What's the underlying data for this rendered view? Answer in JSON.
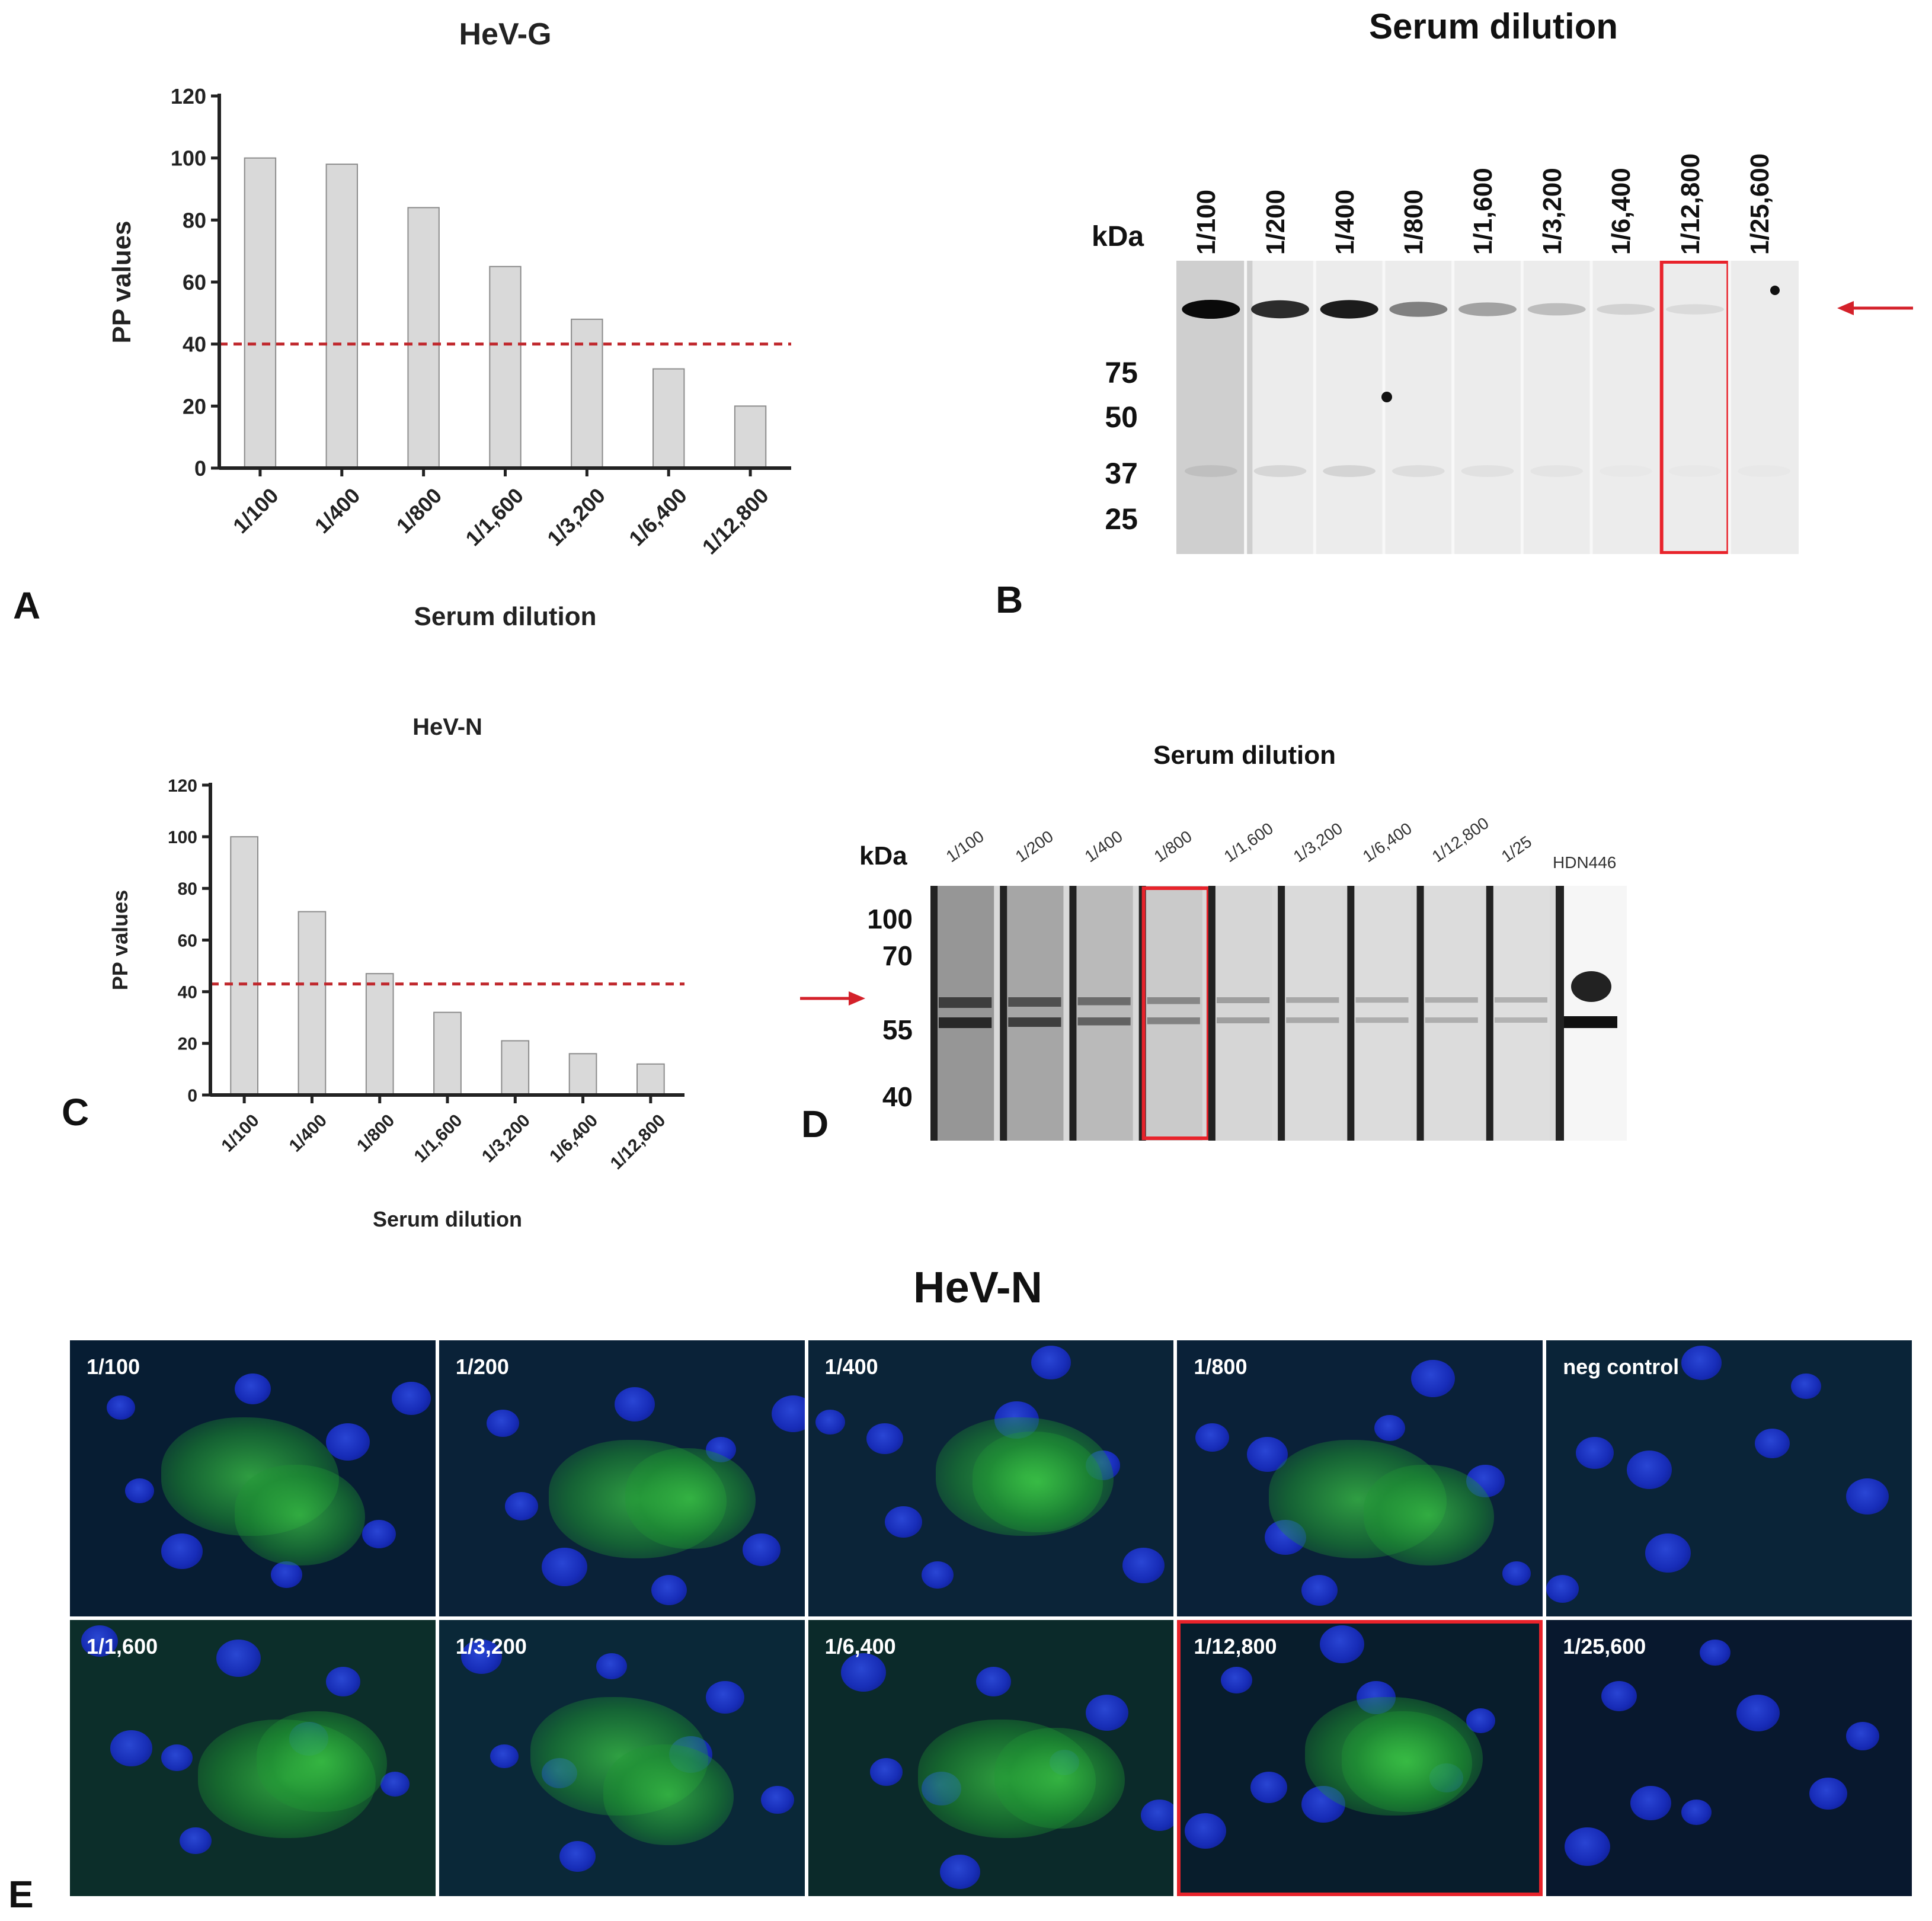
{
  "panels": {
    "a": {
      "letter": "A"
    },
    "b": {
      "letter": "B"
    },
    "c": {
      "letter": "C"
    },
    "d": {
      "letter": "D"
    },
    "e": {
      "letter": "E"
    }
  },
  "chart_data": [
    {
      "type": "bar",
      "panel": "A",
      "title": "HeV-G",
      "xlabel": "Serum dilution",
      "ylabel": "PP values",
      "categories": [
        "1/100",
        "1/400",
        "1/800",
        "1/1,600",
        "1/3,200",
        "1/6,400",
        "1/12,800"
      ],
      "values": [
        100,
        98,
        84,
        65,
        48,
        32,
        20
      ],
      "ylim": [
        0,
        120
      ],
      "yticks": [
        0,
        20,
        40,
        60,
        80,
        100,
        120
      ],
      "threshold": 40,
      "bar_color": "#d9d9d9",
      "threshold_color": "#c0282d"
    },
    {
      "type": "bar",
      "panel": "C",
      "title": "HeV-N",
      "xlabel": "Serum dilution",
      "ylabel": "PP values",
      "categories": [
        "1/100",
        "1/400",
        "1/800",
        "1/1,600",
        "1/3,200",
        "1/6,400",
        "1/12,800"
      ],
      "values": [
        100,
        71,
        47,
        32,
        21,
        16,
        12
      ],
      "ylim": [
        0,
        120
      ],
      "yticks": [
        0,
        20,
        40,
        60,
        80,
        100,
        120
      ],
      "threshold": 43,
      "bar_color": "#d9d9d9",
      "threshold_color": "#c0282d"
    }
  ],
  "blot_b": {
    "title": "Serum dilution",
    "kda": "kDa",
    "lanes": [
      "1/100",
      "1/200",
      "1/400",
      "1/800",
      "1/1,600",
      "1/3,200",
      "1/6,400",
      "1/12,800",
      "1/25,600"
    ],
    "markers": [
      "75",
      "50",
      "37",
      "25"
    ],
    "band_intensity": [
      1.0,
      0.9,
      0.95,
      0.6,
      0.45,
      0.3,
      0.15,
      0.08,
      0.0
    ],
    "highlight_lane": "1/12,800"
  },
  "blot_d": {
    "title": "Serum dilution",
    "kda": "kDa",
    "lanes": [
      "1/100",
      "1/200",
      "1/400",
      "1/800",
      "1/1,600",
      "1/3,200",
      "1/6,400",
      "1/12,800",
      "1/25"
    ],
    "extra_lane": "HDN446",
    "markers": [
      "100",
      "70",
      "55",
      "40"
    ],
    "band_intensity": [
      1.0,
      0.8,
      0.55,
      0.35,
      0.2,
      0.15,
      0.12,
      0.12,
      0.1
    ],
    "highlight_lane": "1/800"
  },
  "if_panel": {
    "title": "HeV-N",
    "cells": [
      {
        "label": "1/100"
      },
      {
        "label": "1/200"
      },
      {
        "label": "1/400"
      },
      {
        "label": "1/800"
      },
      {
        "label": "neg control"
      },
      {
        "label": "1/1,600"
      },
      {
        "label": "1/3,200"
      },
      {
        "label": "1/6,400"
      },
      {
        "label": "1/12,800"
      },
      {
        "label": "1/25,600"
      }
    ],
    "highlight_label": "1/12,800",
    "colors": {
      "nuclei": "#1a2fd0",
      "stain": "#3cc846",
      "background": "#071a2c",
      "highlight": "#e8232b"
    }
  }
}
